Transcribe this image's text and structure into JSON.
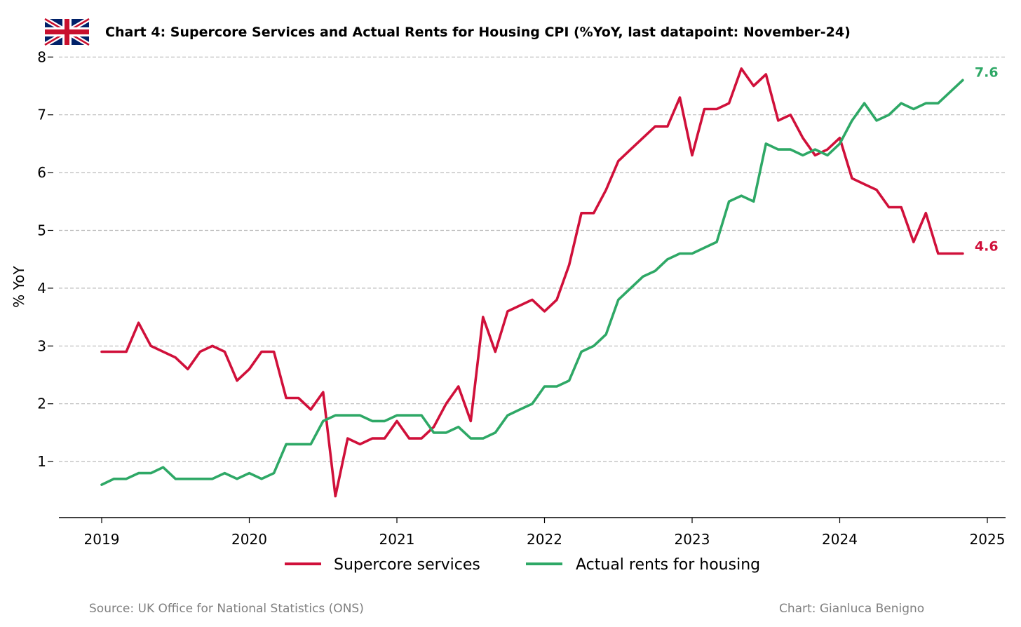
{
  "title": "Chart 4: Supercore Services and Actual Rents for Housing CPI (%YoY, last datapoint: November-24)",
  "flag_icon": "uk-flag-icon",
  "footer": {
    "source": "Source: UK Office for National Statistics (ONS)",
    "credit": "Chart: Gianluca Benigno"
  },
  "colors": {
    "supercore": "#d0103a",
    "rents": "#2ea866",
    "grid": "#bbbbbb",
    "axis": "#000000"
  },
  "chart_data": {
    "type": "line",
    "ylabel": "% YoY",
    "xlabel": "",
    "ylim": [
      0,
      8
    ],
    "yticks": [
      "1",
      "2",
      "3",
      "4",
      "5",
      "6",
      "7",
      "8"
    ],
    "xlim": [
      "2018-10",
      "2025-02"
    ],
    "xticks": [
      "2019",
      "2020",
      "2021",
      "2022",
      "2023",
      "2024",
      "2025"
    ],
    "grid": "horizontal dashed",
    "legend_position": "bottom",
    "x": [
      "2019-01",
      "2019-02",
      "2019-03",
      "2019-04",
      "2019-05",
      "2019-06",
      "2019-07",
      "2019-08",
      "2019-09",
      "2019-10",
      "2019-11",
      "2019-12",
      "2020-01",
      "2020-02",
      "2020-03",
      "2020-04",
      "2020-05",
      "2020-06",
      "2020-07",
      "2020-08",
      "2020-09",
      "2020-10",
      "2020-11",
      "2020-12",
      "2021-01",
      "2021-02",
      "2021-03",
      "2021-04",
      "2021-05",
      "2021-06",
      "2021-07",
      "2021-08",
      "2021-09",
      "2021-10",
      "2021-11",
      "2021-12",
      "2022-01",
      "2022-02",
      "2022-03",
      "2022-04",
      "2022-05",
      "2022-06",
      "2022-07",
      "2022-08",
      "2022-09",
      "2022-10",
      "2022-11",
      "2022-12",
      "2023-01",
      "2023-02",
      "2023-03",
      "2023-04",
      "2023-05",
      "2023-06",
      "2023-07",
      "2023-08",
      "2023-09",
      "2023-10",
      "2023-11",
      "2023-12",
      "2024-01",
      "2024-02",
      "2024-03",
      "2024-04",
      "2024-05",
      "2024-06",
      "2024-07",
      "2024-08",
      "2024-09",
      "2024-10",
      "2024-11"
    ],
    "series": [
      {
        "name": "Supercore services",
        "color_key": "supercore",
        "end_label": "4.6",
        "values": [
          2.9,
          2.9,
          2.9,
          3.4,
          3.0,
          2.9,
          2.8,
          2.6,
          2.9,
          3.0,
          2.9,
          2.4,
          2.6,
          2.9,
          2.9,
          2.1,
          2.1,
          1.9,
          2.2,
          0.4,
          1.4,
          1.3,
          1.4,
          1.4,
          1.7,
          1.4,
          1.4,
          1.6,
          2.0,
          2.3,
          1.7,
          3.5,
          2.9,
          3.6,
          3.7,
          3.8,
          3.6,
          3.8,
          4.4,
          5.3,
          5.3,
          5.7,
          6.2,
          6.4,
          6.6,
          6.8,
          6.8,
          7.3,
          6.3,
          7.1,
          7.1,
          7.2,
          7.8,
          7.5,
          7.7,
          6.9,
          7.0,
          6.6,
          6.3,
          6.4,
          6.6,
          5.9,
          5.8,
          5.7,
          5.4,
          5.4,
          4.8,
          5.3,
          4.6,
          4.6,
          4.6
        ]
      },
      {
        "name": "Actual rents for housing",
        "color_key": "rents",
        "end_label": "7.6",
        "values": [
          0.6,
          0.7,
          0.7,
          0.8,
          0.8,
          0.9,
          0.7,
          0.7,
          0.7,
          0.7,
          0.8,
          0.7,
          0.8,
          0.7,
          0.8,
          1.3,
          1.3,
          1.3,
          1.7,
          1.8,
          1.8,
          1.8,
          1.7,
          1.7,
          1.8,
          1.8,
          1.8,
          1.5,
          1.5,
          1.6,
          1.4,
          1.4,
          1.5,
          1.8,
          1.9,
          2.0,
          2.3,
          2.3,
          2.4,
          2.9,
          3.0,
          3.2,
          3.8,
          4.0,
          4.2,
          4.3,
          4.5,
          4.6,
          4.6,
          4.7,
          4.8,
          5.5,
          5.6,
          5.5,
          6.5,
          6.4,
          6.4,
          6.3,
          6.4,
          6.3,
          6.5,
          6.9,
          7.2,
          6.9,
          7.0,
          7.2,
          7.1,
          7.2,
          7.2,
          7.4,
          7.6
        ]
      }
    ]
  }
}
